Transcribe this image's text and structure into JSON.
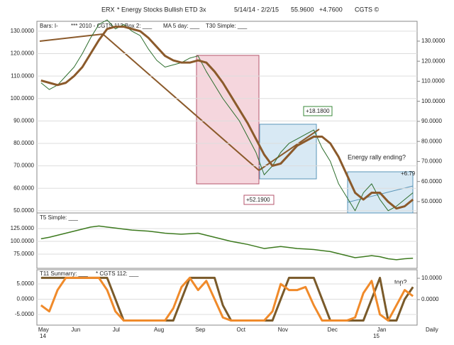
{
  "chart_data": [
    {
      "type": "line",
      "symbol": "ERX",
      "title": "* Energy Stocks Bullish ETD 3x",
      "date_range": "5/14/14 - 2/2/15",
      "last_price": "55.9600",
      "change": "+4.7600",
      "source": "CGTS ©",
      "legend_texts": [
        "Bars: I-",
        "*** 2010 - CGTS 112 Box 2: ___",
        "MA 5 day: ___",
        "T30 Simple: ___"
      ],
      "annotations": [
        "+18.1800",
        "+52.1900",
        "Energy rally ending?",
        "+6.79"
      ],
      "ylim": [
        49,
        134.4
      ],
      "yticks": [
        {
          "value": 50,
          "label": "50.0000"
        },
        {
          "value": 60,
          "label": "60.0000"
        },
        {
          "value": 70,
          "label": "70.0000"
        },
        {
          "value": 80,
          "label": "80.0000"
        },
        {
          "value": 90,
          "label": "90.0000"
        },
        {
          "value": 100,
          "label": "100.0000"
        },
        {
          "value": 110,
          "label": "110.0000"
        },
        {
          "value": 120,
          "label": "120.0000"
        },
        {
          "value": 130,
          "label": "130.0000"
        }
      ],
      "y2lim": [
        44.3,
        139.9
      ],
      "y2ticks": [
        {
          "value": 50,
          "label": "50.0000"
        },
        {
          "value": 60,
          "label": "60.0000"
        },
        {
          "value": 70,
          "label": "70.0000"
        },
        {
          "value": 80,
          "label": "80.0000"
        },
        {
          "value": 90,
          "label": "90.0000"
        },
        {
          "value": 100,
          "label": "100.0000"
        },
        {
          "value": 110,
          "label": "110.0000"
        },
        {
          "value": 120,
          "label": "120.0000"
        },
        {
          "value": 130,
          "label": "130.0000"
        }
      ],
      "grid": true,
      "series": [
        {
          "color": "#2e6e2e",
          "width": 1,
          "values": [
            107,
            104,
            106,
            110,
            114,
            120,
            127,
            133,
            135,
            131,
            133,
            130,
            128,
            122,
            117,
            114,
            115,
            116,
            118,
            119,
            112,
            106,
            100,
            95,
            90,
            83,
            76,
            66,
            70,
            76,
            80,
            82,
            84,
            86,
            78,
            72,
            62,
            56,
            50,
            58,
            62,
            55,
            50,
            52,
            55,
            58
          ]
        },
        {
          "color": "#8b5a2b",
          "width": 3,
          "values": [
            108,
            107,
            106,
            107,
            110,
            114,
            120,
            126,
            131,
            132,
            132,
            131,
            130,
            127,
            123,
            119,
            117,
            116,
            116,
            117,
            116,
            112,
            107,
            101,
            95,
            89,
            82,
            75,
            70,
            71,
            75,
            79,
            81,
            83,
            83,
            80,
            74,
            66,
            58,
            55,
            58,
            58,
            54,
            51,
            52,
            55
          ]
        }
      ]
    },
    {
      "type": "line",
      "legend_texts": [
        "T5 Simple: ___"
      ],
      "ylim": [
        47.2,
        155.6
      ],
      "yticks": [
        {
          "value": 75,
          "label": "75.0000"
        },
        {
          "value": 100,
          "label": "100.0000"
        },
        {
          "value": 125,
          "label": "125.0000"
        }
      ],
      "grid": true,
      "series": [
        {
          "color": "#3d7a1f",
          "width": 1.5,
          "values": [
            105,
            108,
            112,
            116,
            120,
            124,
            128,
            130,
            128,
            126,
            124,
            122,
            121,
            120,
            118,
            116,
            115,
            114,
            115,
            116,
            112,
            108,
            104,
            100,
            97,
            94,
            90,
            86,
            88,
            90,
            88,
            86,
            85,
            84,
            82,
            80,
            76,
            72,
            68,
            70,
            72,
            70,
            66,
            64,
            66,
            67
          ]
        }
      ]
    },
    {
      "type": "line",
      "legend_texts": [
        "T11 Sunmarry: ___",
        "* CGTS 112: ___"
      ],
      "annotations": [
        "top?"
      ],
      "categories": [
        "May",
        null,
        null,
        null,
        "Jun",
        null,
        null,
        null,
        null,
        "Jul",
        null,
        null,
        null,
        null,
        "Aug",
        null,
        null,
        null,
        null,
        "Sep",
        null,
        null,
        null,
        null,
        "Oct",
        null,
        null,
        null,
        null,
        "Nov",
        null,
        null,
        null,
        null,
        null,
        "Dec",
        null,
        null,
        null,
        null,
        null,
        "Jan",
        null,
        null,
        null,
        null
      ],
      "x_label": "Daily",
      "ylim": [
        -8.5,
        9.65
      ],
      "yticks": [
        {
          "value": -5,
          "label": "-5.0000"
        },
        {
          "value": 0,
          "label": "0.0000"
        },
        {
          "value": 5,
          "label": "5.0000"
        }
      ],
      "y2lim": [
        -12,
        14
      ],
      "y2ticks": [
        {
          "value": 0,
          "label": "0.0000"
        },
        {
          "value": 10,
          "label": "10.0000"
        }
      ],
      "grid": true,
      "series": [
        {
          "color": "#7a5a2a",
          "width": 3,
          "values": [
            7,
            7,
            7,
            7,
            7,
            7,
            7,
            7,
            7,
            0,
            -7,
            -7,
            -7,
            -7,
            -7,
            -7,
            -7,
            0,
            7,
            7,
            7,
            7,
            -2,
            -7,
            -7,
            -7,
            -7,
            -7,
            -7,
            0,
            7,
            7,
            7,
            7,
            0,
            -7,
            -7,
            -7,
            -7,
            -7,
            0,
            7,
            -7,
            -7,
            0,
            4
          ]
        },
        {
          "color": "#f08a2a",
          "width": 3,
          "values": [
            -2,
            -4,
            3,
            7,
            7,
            7,
            7,
            7,
            3,
            -4,
            -7,
            -7,
            -7,
            -7,
            -7,
            -7,
            -3,
            4,
            7,
            3,
            6,
            0,
            -6,
            -7,
            -7,
            -7,
            -7,
            -7,
            -4,
            5,
            3,
            3,
            4,
            -2,
            -7,
            -7,
            -7,
            -7,
            -6,
            2,
            6,
            -5,
            -7,
            -2,
            3,
            1
          ]
        }
      ]
    }
  ]
}
